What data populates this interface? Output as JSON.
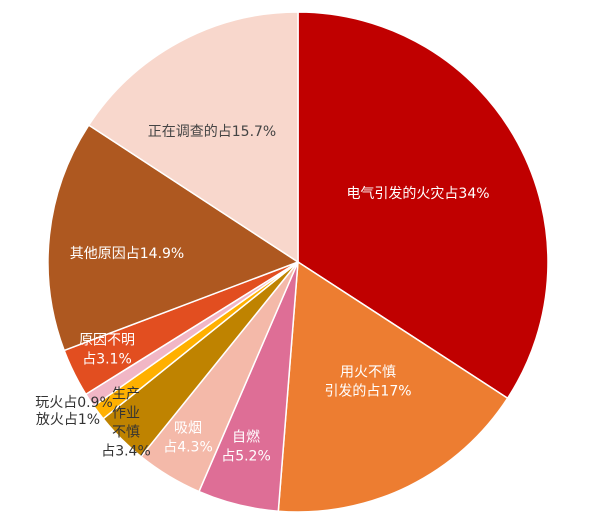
{
  "chart_data": {
    "type": "pie",
    "title": "",
    "start_angle_deg": 0,
    "direction": "clockwise",
    "slices": [
      {
        "label_lines": [
          "电气引发的火灾占34%"
        ],
        "value": 34,
        "color": "#C00000",
        "label_color": "#ffffff"
      },
      {
        "label_lines": [
          "用火不慎",
          "引发的占17%"
        ],
        "value": 17,
        "color": "#ED7D31",
        "label_color": "#ffffff"
      },
      {
        "label_lines": [
          "自燃",
          "占5.2%"
        ],
        "value": 5.2,
        "color": "#DE6E96",
        "label_color": "#ffffff"
      },
      {
        "label_lines": [
          "吸烟",
          "占4.3%"
        ],
        "value": 4.3,
        "color": "#F4B9A9",
        "label_color": "#ffffff"
      },
      {
        "label_lines": [
          "生产",
          "作业",
          "不慎",
          "占3.4%"
        ],
        "value": 3.4,
        "color": "#BF8300",
        "label_color": "#333333"
      },
      {
        "label_lines": [
          "放火占1%"
        ],
        "value": 1,
        "color": "#FFB000",
        "label_color": "#333333"
      },
      {
        "label_lines": [
          "玩火占0.9%"
        ],
        "value": 0.9,
        "color": "#F1B6C5",
        "label_color": "#333333"
      },
      {
        "label_lines": [
          "原因不明",
          "占3.1%"
        ],
        "value": 3.1,
        "color": "#E24E20",
        "label_color": "#ffffff"
      },
      {
        "label_lines": [
          "其他原因占14.9%"
        ],
        "value": 14.9,
        "color": "#AE5820",
        "label_color": "#ffffff"
      },
      {
        "label_lines": [
          "正在调查的占15.7%"
        ],
        "value": 15.7,
        "color": "#F8D7CC",
        "label_color": "#444444"
      }
    ]
  }
}
